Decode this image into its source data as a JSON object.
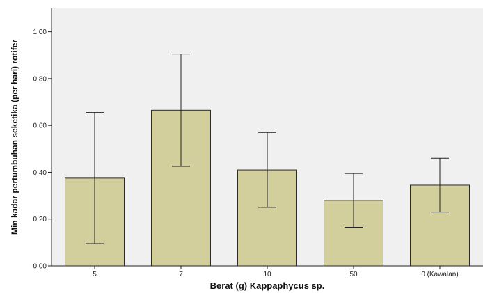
{
  "chart_data": {
    "type": "bar",
    "title": "",
    "xlabel": "Berat (g) Kappaphycus sp.",
    "ylabel": "Min kadar pertumbuhan seketika (per hari) rotifer",
    "categories": [
      "5",
      "7",
      "10",
      "50",
      "0 (Kawalan)"
    ],
    "values": [
      0.375,
      0.665,
      0.41,
      0.28,
      0.345
    ],
    "error_bars": {
      "lower": [
        0.095,
        0.425,
        0.25,
        0.165,
        0.23
      ],
      "upper": [
        0.655,
        0.905,
        0.57,
        0.395,
        0.46
      ]
    },
    "ylim": [
      0,
      1.1
    ],
    "yticks": [
      "0.00",
      "0.20",
      "0.40",
      "0.60",
      "0.80",
      "1.00"
    ],
    "grid": false,
    "colors": {
      "bar_fill": "#d3cf9c",
      "bar_stroke": "#2a2a2a",
      "plot_background": "#f0f0f0",
      "axis": "#222222"
    }
  }
}
